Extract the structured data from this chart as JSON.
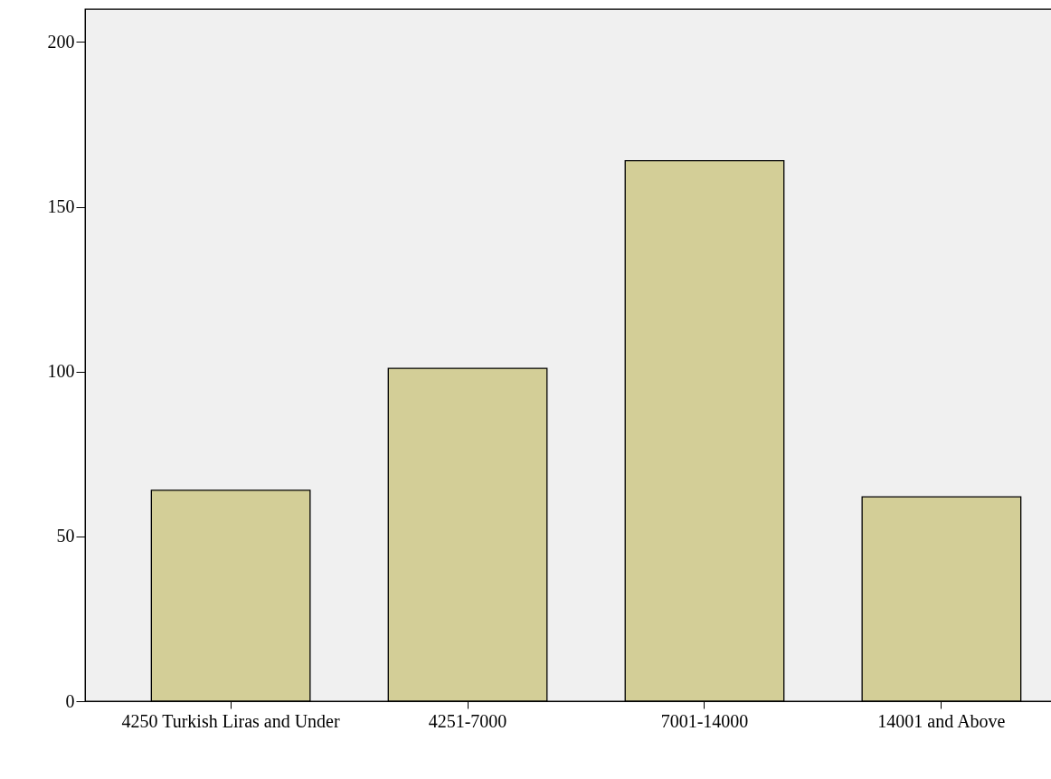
{
  "chart_data": {
    "type": "bar",
    "categories": [
      "4250 Turkish Liras and Under",
      "4251-7000",
      "7001-14000",
      "14001 and Above"
    ],
    "values": [
      64,
      101,
      164,
      62
    ],
    "color": "#d3ce97",
    "ylim": [
      0,
      210
    ],
    "yticks": [
      0,
      50,
      100,
      150,
      200
    ],
    "grid": false,
    "legend": false
  }
}
